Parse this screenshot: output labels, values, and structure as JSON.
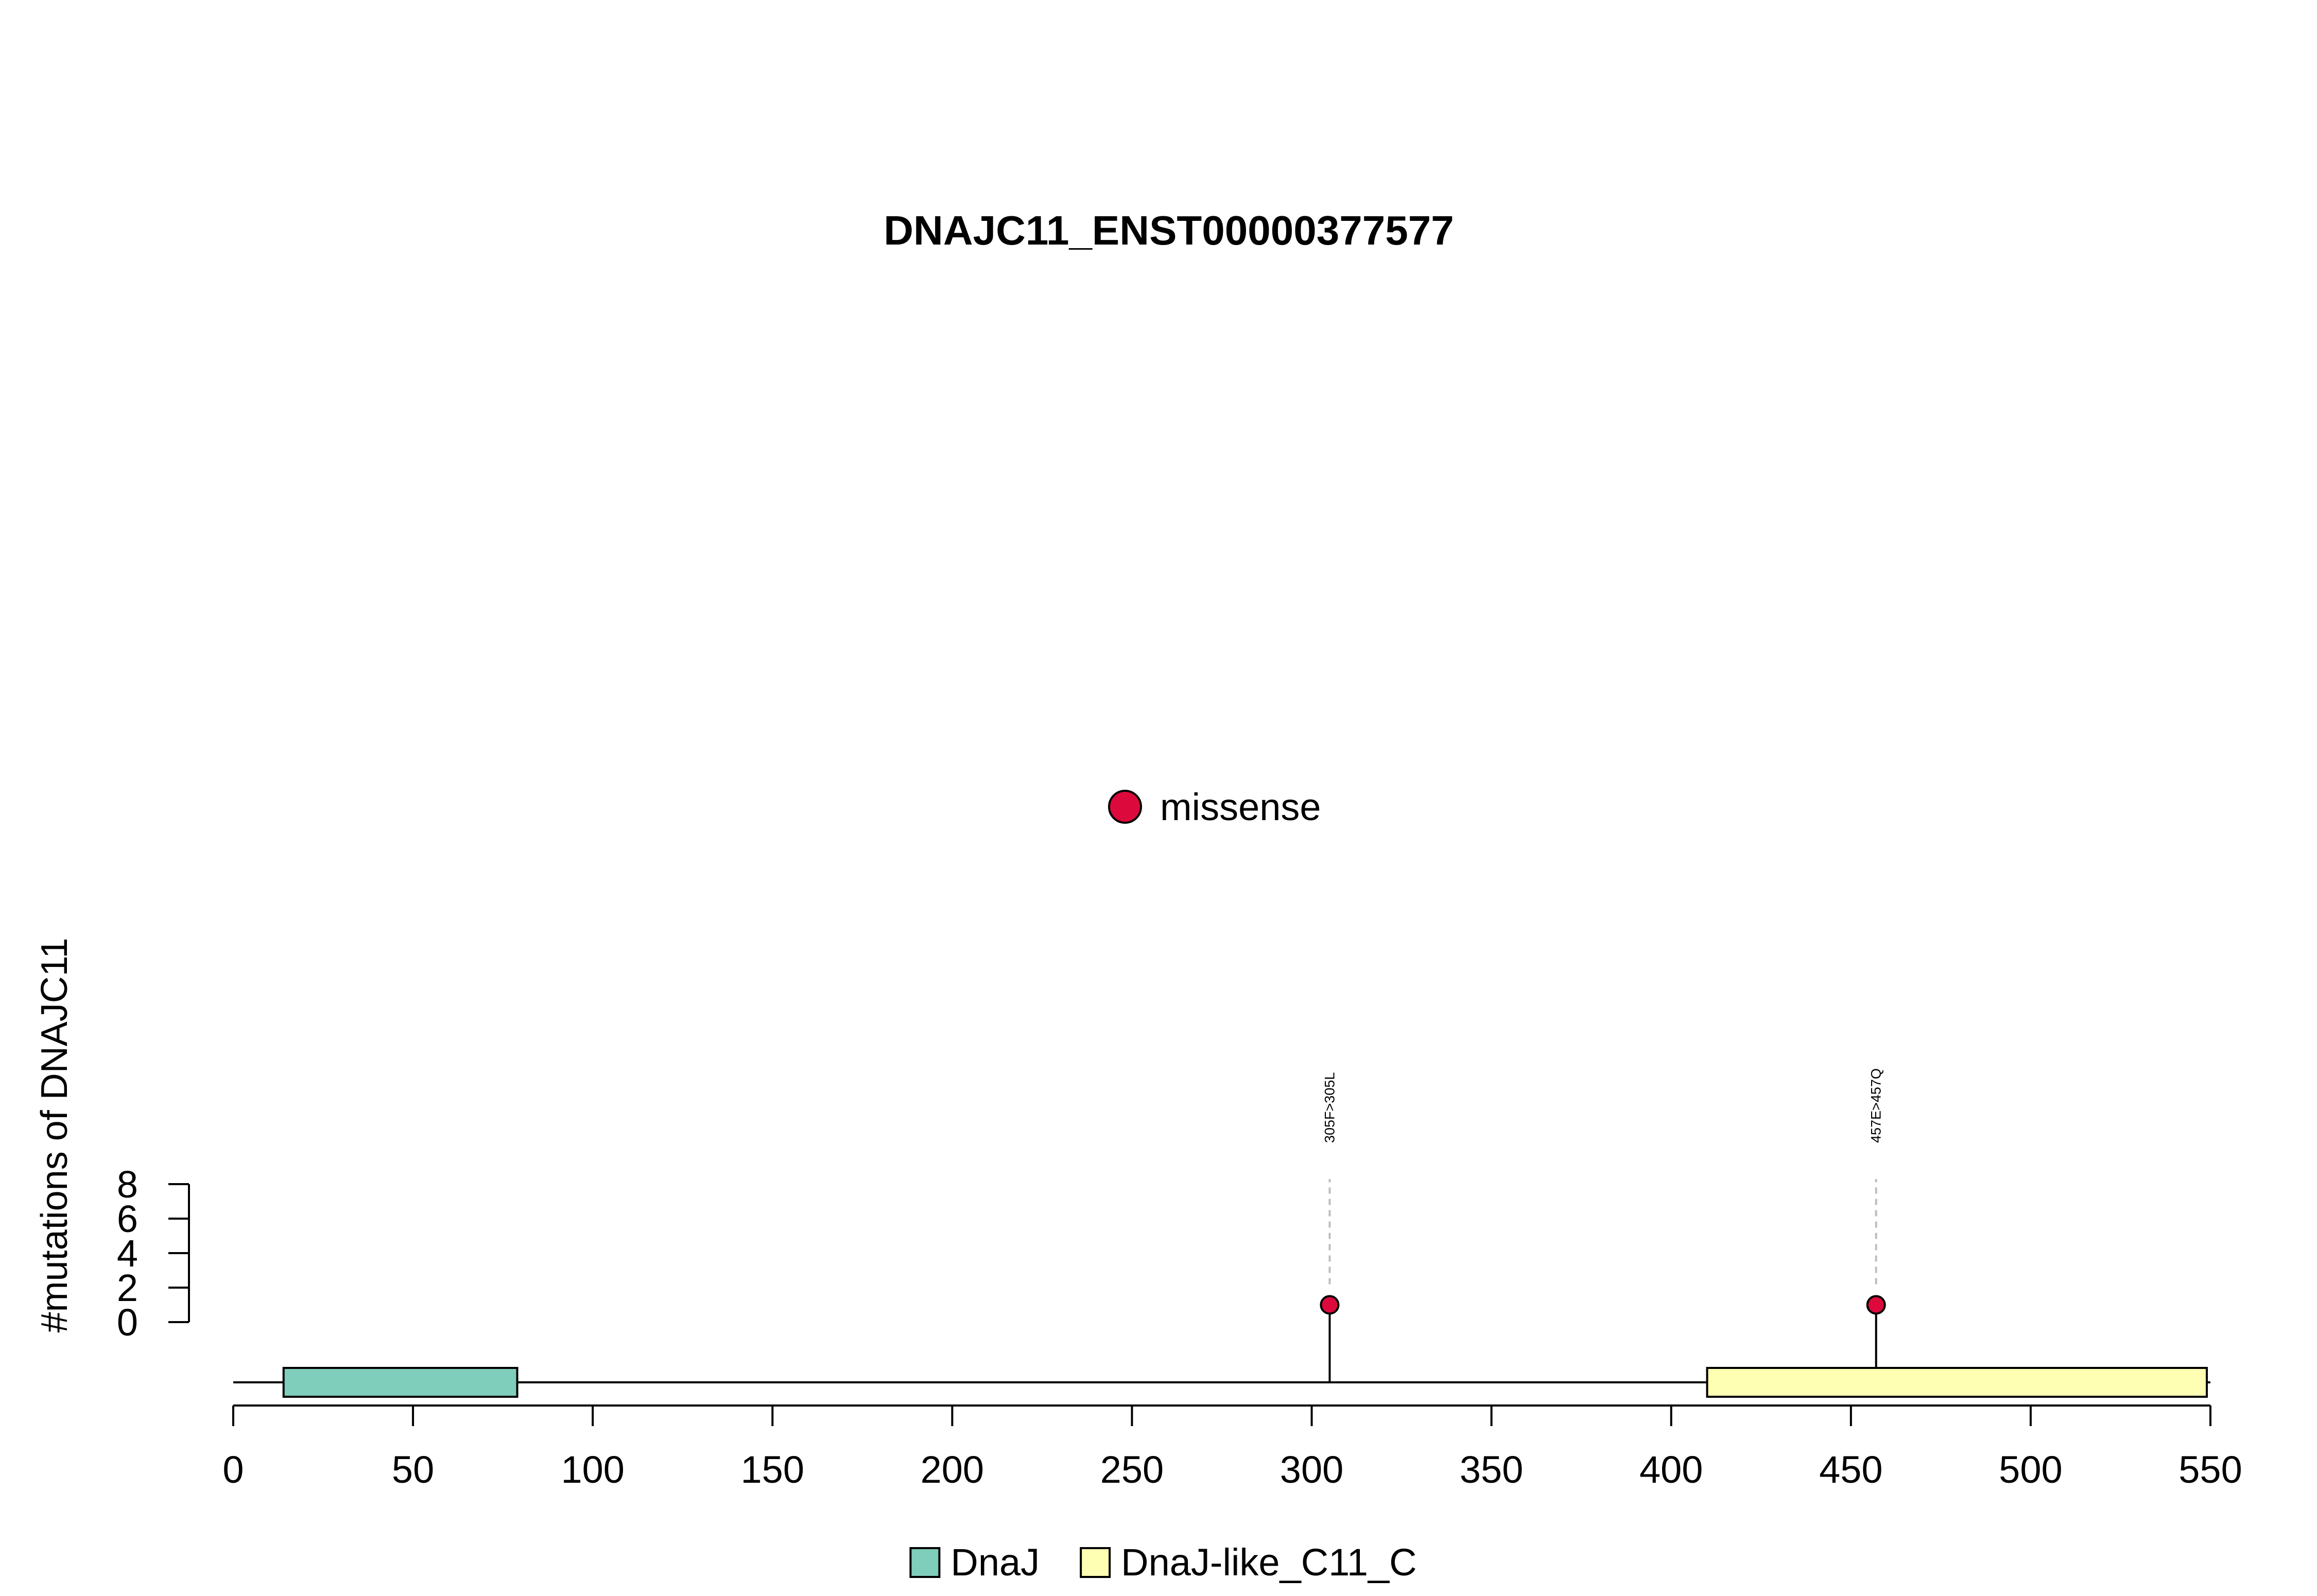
{
  "chart_data": {
    "type": "lollipop",
    "title": "DNAJC11_ENST00000377577",
    "ylabel": "#mutations of DNAJC11",
    "xlim": [
      0,
      550
    ],
    "x_ticks": [
      0,
      50,
      100,
      150,
      200,
      250,
      300,
      350,
      400,
      450,
      500,
      550
    ],
    "x_tick_labels": [
      "0",
      "50",
      "100",
      "150",
      "200",
      "250",
      "300",
      "350",
      "400",
      "450",
      "500",
      "550"
    ],
    "ylim": [
      0,
      8
    ],
    "y_ticks": [
      0,
      2,
      4,
      6,
      8
    ],
    "y_tick_labels": [
      "0",
      "2",
      "4",
      "6",
      "8"
    ],
    "protein_length": 550,
    "domains": [
      {
        "name": "DnaJ",
        "start": 14,
        "end": 79,
        "color": "#7fcdbb"
      },
      {
        "name": "DnaJ-like_C11_C",
        "start": 410,
        "end": 549,
        "color": "#ffffb3"
      }
    ],
    "mutations": [
      {
        "position": 305,
        "count": 1,
        "label": "305F>305L",
        "type": "missense"
      },
      {
        "position": 457,
        "count": 1,
        "label": "457E>457Q",
        "type": "missense"
      }
    ],
    "mutation_legend": [
      {
        "name": "missense",
        "color": "#dc0a3c"
      }
    ],
    "domain_legend": [
      {
        "name": "DnaJ",
        "color": "#7fcdbb"
      },
      {
        "name": "DnaJ-like_C11_C",
        "color": "#ffffb3"
      }
    ]
  }
}
